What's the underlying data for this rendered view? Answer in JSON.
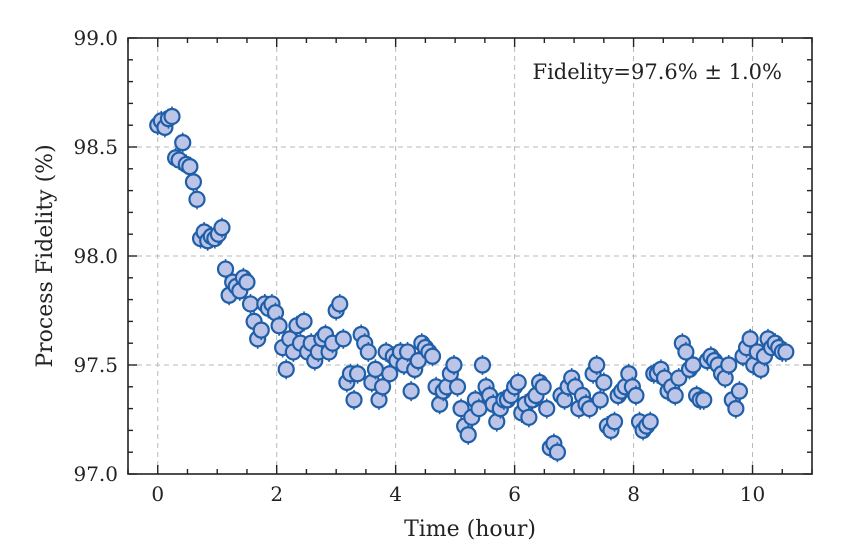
{
  "chart_data": {
    "type": "scatter",
    "title": "",
    "xlabel": "Time (hour)",
    "ylabel": "Process Fidelity (%)",
    "annotation": "Fidelity=97.6% ± 1.0%",
    "xlim": [
      -0.5,
      11.0
    ],
    "ylim": [
      97.0,
      99.0
    ],
    "xticks": [
      0,
      2,
      4,
      6,
      8,
      10
    ],
    "xtick_labels": [
      "0",
      "2",
      "4",
      "6",
      "8",
      "10"
    ],
    "yticks": [
      97.0,
      97.5,
      98.0,
      98.5,
      99.0
    ],
    "ytick_labels": [
      "97.0",
      "97.5",
      "98.0",
      "98.5",
      "99.0"
    ],
    "grid": true,
    "colors": {
      "marker_fill": "#bcc4e8",
      "marker_edge": "#1f5fa8"
    },
    "series": [
      {
        "x": [
          0.0,
          0.06,
          0.12,
          0.18,
          0.24,
          0.3,
          0.36,
          0.42,
          0.48,
          0.54,
          0.6,
          0.66,
          0.72,
          0.78,
          0.84,
          0.9,
          0.96,
          1.02,
          1.08,
          1.14,
          1.2,
          1.26,
          1.32,
          1.38,
          1.44,
          1.5,
          1.56,
          1.62,
          1.68,
          1.74,
          1.8,
          1.86,
          1.92,
          1.98,
          2.04,
          2.1,
          2.16,
          2.22,
          2.28,
          2.34,
          2.4,
          2.46,
          2.52,
          2.58,
          2.64,
          2.7,
          2.76,
          2.82,
          2.88,
          2.94,
          3.0,
          3.06,
          3.12,
          3.18,
          3.24,
          3.3,
          3.36,
          3.42,
          3.48,
          3.54,
          3.6,
          3.66,
          3.72,
          3.78,
          3.84,
          3.9,
          3.96,
          4.02,
          4.08,
          4.14,
          4.2,
          4.26,
          4.32,
          4.38,
          4.44,
          4.5,
          4.56,
          4.62,
          4.68,
          4.74,
          4.8,
          4.86,
          4.92,
          4.98,
          5.04,
          5.1,
          5.16,
          5.22,
          5.28,
          5.34,
          5.4,
          5.46,
          5.52,
          5.58,
          5.64,
          5.7,
          5.76,
          5.82,
          5.88,
          5.94,
          6.0,
          6.06,
          6.12,
          6.18,
          6.24,
          6.3,
          6.36,
          6.42,
          6.48,
          6.54,
          6.6,
          6.66,
          6.72,
          6.78,
          6.84,
          6.9,
          6.96,
          7.02,
          7.08,
          7.14,
          7.2,
          7.26,
          7.32,
          7.38,
          7.44,
          7.5,
          7.56,
          7.62,
          7.68,
          7.74,
          7.8,
          7.86,
          7.92,
          7.98,
          8.04,
          8.1,
          8.16,
          8.22,
          8.28,
          8.34,
          8.4,
          8.46,
          8.52,
          8.58,
          8.64,
          8.7,
          8.76,
          8.82,
          8.88,
          8.94,
          9.0,
          9.06,
          9.12,
          9.18,
          9.24,
          9.3,
          9.36,
          9.42,
          9.48,
          9.54,
          9.6,
          9.66,
          9.72,
          9.78,
          9.84,
          9.9,
          9.96,
          10.02,
          10.08,
          10.14,
          10.2,
          10.26,
          10.32,
          10.38,
          10.44,
          10.5,
          10.56
        ],
        "y": [
          98.6,
          98.62,
          98.59,
          98.63,
          98.64,
          98.45,
          98.44,
          98.52,
          98.42,
          98.41,
          98.34,
          98.26,
          98.08,
          98.11,
          98.07,
          98.09,
          98.08,
          98.1,
          98.13,
          97.94,
          97.82,
          97.88,
          97.86,
          97.84,
          97.9,
          97.88,
          97.78,
          97.7,
          97.62,
          97.66,
          97.78,
          97.76,
          97.78,
          97.74,
          97.68,
          97.58,
          97.48,
          97.62,
          97.56,
          97.68,
          97.6,
          97.7,
          97.56,
          97.6,
          97.52,
          97.56,
          97.62,
          97.64,
          97.56,
          97.6,
          97.75,
          97.78,
          97.62,
          97.42,
          97.46,
          97.34,
          97.46,
          97.64,
          97.6,
          97.56,
          97.42,
          97.48,
          97.34,
          97.4,
          97.56,
          97.46,
          97.54,
          97.52,
          97.56,
          97.5,
          97.56,
          97.38,
          97.48,
          97.52,
          97.6,
          97.58,
          97.56,
          97.54,
          97.4,
          97.32,
          97.38,
          97.4,
          97.46,
          97.5,
          97.4,
          97.3,
          97.22,
          97.18,
          97.26,
          97.34,
          97.3,
          97.5,
          97.4,
          97.36,
          97.32,
          97.24,
          97.3,
          97.34,
          97.34,
          97.36,
          97.4,
          97.42,
          97.28,
          97.32,
          97.26,
          97.34,
          97.36,
          97.42,
          97.4,
          97.3,
          97.12,
          97.14,
          97.1,
          97.36,
          97.34,
          97.4,
          97.44,
          97.4,
          97.3,
          97.36,
          97.32,
          97.3,
          97.46,
          97.5,
          97.34,
          97.42,
          97.22,
          97.2,
          97.24,
          97.36,
          97.38,
          97.4,
          97.46,
          97.4,
          97.36,
          97.24,
          97.2,
          97.22,
          97.24,
          97.46,
          97.46,
          97.48,
          97.44,
          97.38,
          97.4,
          97.36,
          97.44,
          97.6,
          97.56,
          97.48,
          97.5,
          97.36,
          97.34,
          97.34,
          97.52,
          97.54,
          97.52,
          97.5,
          97.46,
          97.44,
          97.5,
          97.34,
          97.3,
          97.38,
          97.54,
          97.58,
          97.62,
          97.5,
          97.56,
          97.48,
          97.54,
          97.62,
          97.58,
          97.6,
          97.58,
          97.56,
          97.56
        ]
      }
    ]
  }
}
